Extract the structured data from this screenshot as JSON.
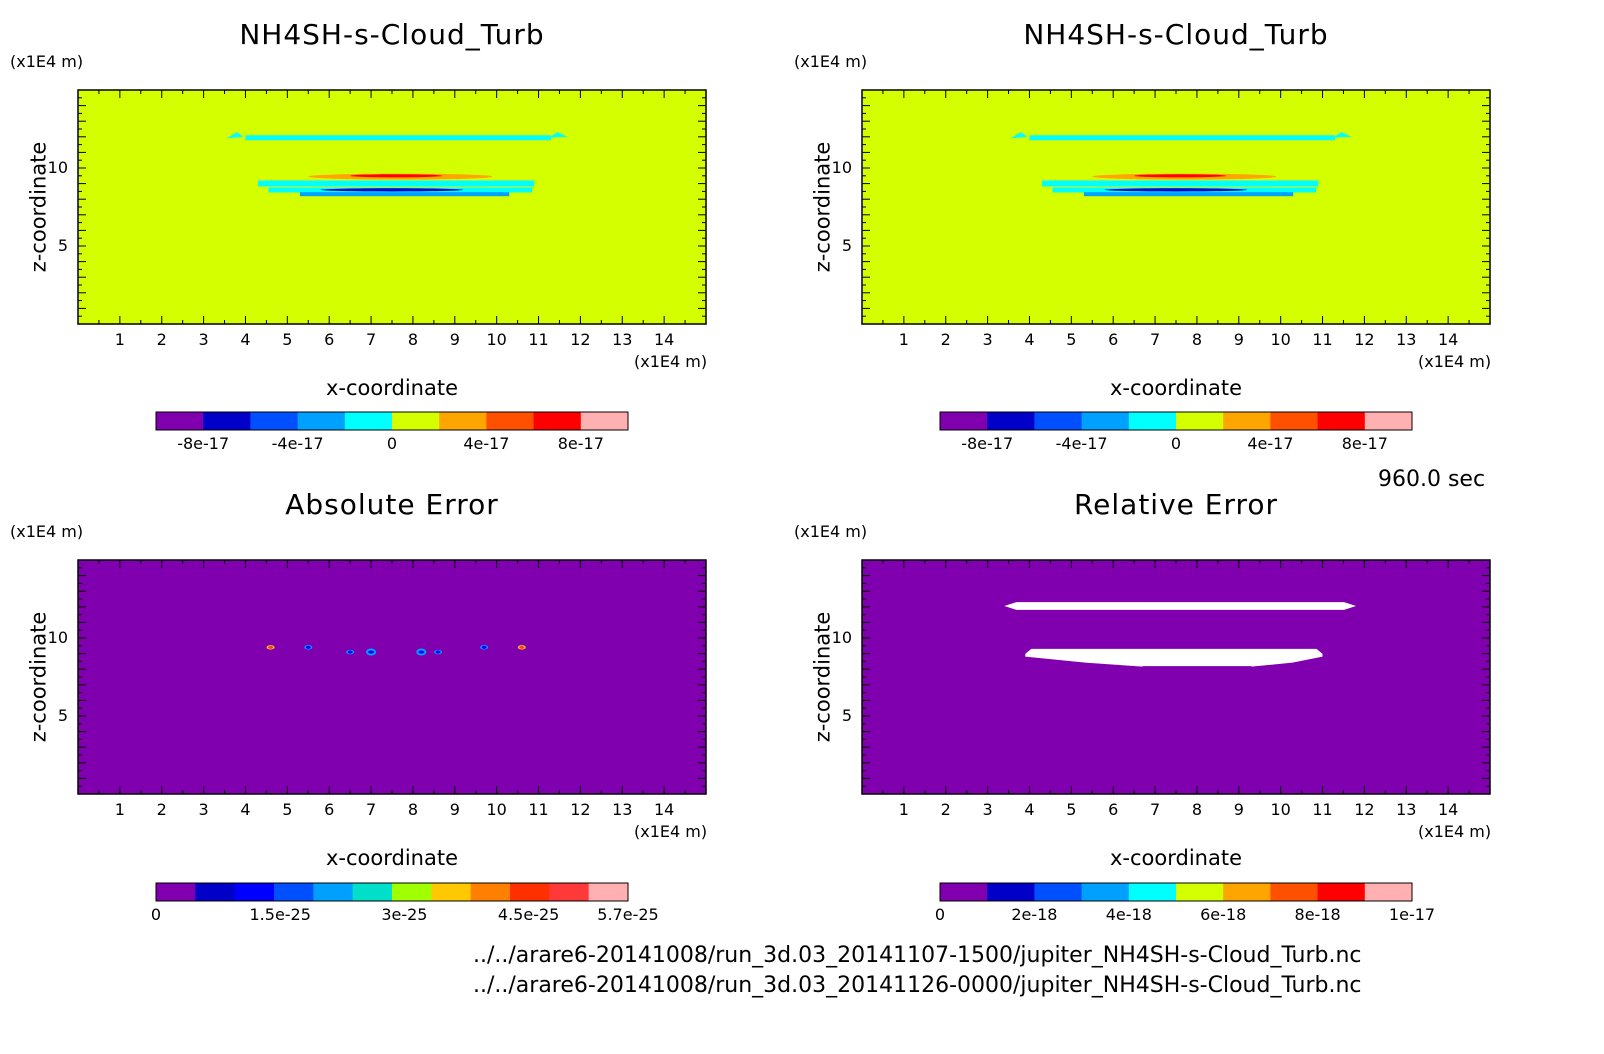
{
  "time_label": "960.0 sec",
  "file_paths": [
    "../../arare6-20141008/run_3d.03_20141107-1500/jupiter_NH4SH-s-Cloud_Turb.nc",
    "../../arare6-20141008/run_3d.03_20141126-0000/jupiter_NH4SH-s-Cloud_Turb.nc"
  ],
  "colors": {
    "background_field_top": "#d4ff00",
    "background_field_bottom": "#8000b0",
    "blank": "#ffffff"
  },
  "chart_data": [
    {
      "type": "heatmap",
      "title": "NH4SH-s-Cloud_Turb",
      "xlabel": "x-coordinate",
      "ylabel": "z-coordinate",
      "x_unit": "(x1E4 m)",
      "y_unit": "(x1E4 m)",
      "xlim": [
        0,
        15
      ],
      "ylim": [
        0,
        15
      ],
      "x_ticks": [
        "1",
        "2",
        "3",
        "4",
        "5",
        "6",
        "7",
        "8",
        "9",
        "10",
        "11",
        "12",
        "13",
        "14"
      ],
      "y_ticks": [
        "5",
        "10"
      ],
      "background_level": 0,
      "colorbar": {
        "colors": [
          "#8000b0",
          "#0000c8",
          "#0050ff",
          "#00a0ff",
          "#00ffff",
          "#d4ff00",
          "#ffa500",
          "#ff5000",
          "#ff0000",
          "#ffb0b0"
        ],
        "tick_labels": [
          "-8e-17",
          "-4e-17",
          "0",
          "4e-17",
          "8e-17"
        ],
        "tick_values": [
          -8e-17,
          -4e-17,
          0,
          4e-17,
          8e-17
        ],
        "range": [
          -1e-16,
          1e-16
        ]
      }
    },
    {
      "type": "heatmap",
      "title": "NH4SH-s-Cloud_Turb",
      "xlabel": "x-coordinate",
      "ylabel": "z-coordinate",
      "x_unit": "(x1E4 m)",
      "y_unit": "(x1E4 m)",
      "xlim": [
        0,
        15
      ],
      "ylim": [
        0,
        15
      ],
      "x_ticks": [
        "1",
        "2",
        "3",
        "4",
        "5",
        "6",
        "7",
        "8",
        "9",
        "10",
        "11",
        "12",
        "13",
        "14"
      ],
      "y_ticks": [
        "5",
        "10"
      ],
      "background_level": 0,
      "colorbar": {
        "colors": [
          "#8000b0",
          "#0000c8",
          "#0050ff",
          "#00a0ff",
          "#00ffff",
          "#d4ff00",
          "#ffa500",
          "#ff5000",
          "#ff0000",
          "#ffb0b0"
        ],
        "tick_labels": [
          "-8e-17",
          "-4e-17",
          "0",
          "4e-17",
          "8e-17"
        ],
        "tick_values": [
          -8e-17,
          -4e-17,
          0,
          4e-17,
          8e-17
        ],
        "range": [
          -1e-16,
          1e-16
        ]
      }
    },
    {
      "type": "heatmap",
      "title": "Absolute Error",
      "xlabel": "x-coordinate",
      "ylabel": "z-coordinate",
      "x_unit": "(x1E4 m)",
      "y_unit": "(x1E4 m)",
      "xlim": [
        0,
        15
      ],
      "ylim": [
        0,
        15
      ],
      "x_ticks": [
        "1",
        "2",
        "3",
        "4",
        "5",
        "6",
        "7",
        "8",
        "9",
        "10",
        "11",
        "12",
        "13",
        "14"
      ],
      "y_ticks": [
        "5",
        "10"
      ],
      "background_level": 0,
      "colorbar": {
        "colors": [
          "#8000b0",
          "#0000c8",
          "#0000ff",
          "#0050ff",
          "#00a0ff",
          "#00e0c8",
          "#a0ff00",
          "#ffc800",
          "#ff8000",
          "#ff3000",
          "#ff3838",
          "#ffb0b0"
        ],
        "tick_labels": [
          "0",
          "1.5e-25",
          "3e-25",
          "4.5e-25",
          "5.7e-25"
        ],
        "tick_values": [
          0,
          1.5e-25,
          3e-25,
          4.5e-25,
          5.7e-25
        ],
        "range": [
          0,
          5.7e-25
        ]
      },
      "hotspots_x": [
        4.6,
        5.5,
        6.5,
        7.0,
        8.2,
        8.6,
        9.7,
        10.6
      ],
      "hotspots_z": [
        9.4,
        9.4,
        9.1,
        9.1,
        9.1,
        9.1,
        9.4,
        9.4
      ]
    },
    {
      "type": "heatmap",
      "title": "Relative Error",
      "xlabel": "x-coordinate",
      "ylabel": "z-coordinate",
      "x_unit": "(x1E4 m)",
      "y_unit": "(x1E4 m)",
      "xlim": [
        0,
        15
      ],
      "ylim": [
        0,
        15
      ],
      "x_ticks": [
        "1",
        "2",
        "3",
        "4",
        "5",
        "6",
        "7",
        "8",
        "9",
        "10",
        "11",
        "12",
        "13",
        "14"
      ],
      "y_ticks": [
        "5",
        "10"
      ],
      "background_level": 0,
      "colorbar": {
        "colors": [
          "#8000b0",
          "#0000c8",
          "#0050ff",
          "#00a0ff",
          "#00ffff",
          "#d4ff00",
          "#ffa500",
          "#ff5000",
          "#ff0000",
          "#ffb0b0"
        ],
        "tick_labels": [
          "0",
          "2e-18",
          "4e-18",
          "6e-18",
          "8e-18",
          "1e-17"
        ],
        "tick_values": [
          0,
          2e-18,
          4e-18,
          6e-18,
          8e-18,
          1e-17
        ],
        "range": [
          0,
          1e-17
        ]
      },
      "blank_regions": [
        {
          "x": [
            3.4,
            11.8
          ],
          "z": [
            11.8,
            12.3
          ]
        },
        {
          "x": [
            3.9,
            11.0
          ],
          "z": [
            8.2,
            9.3
          ]
        }
      ]
    }
  ]
}
